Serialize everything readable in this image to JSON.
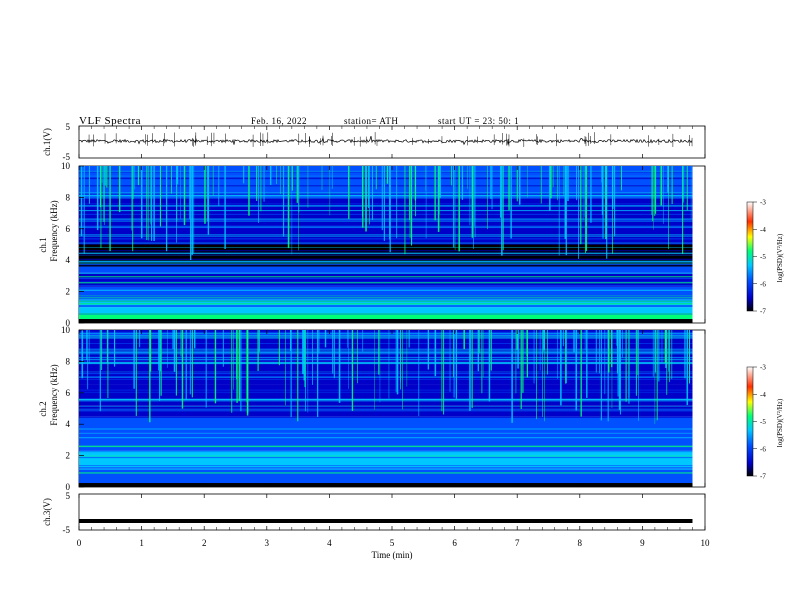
{
  "header": {
    "title": "VLF  Spectra",
    "date": "Feb. 16, 2022",
    "station": "station= ATH",
    "start": "start  UT  =    23: 50: 1"
  },
  "panels": {
    "ch1_label": "ch.1(V)",
    "spec1_label1": "ch.1",
    "spec1_label2": "Frequency  (kHz)",
    "spec2_label1": "ch.2",
    "spec2_label2": "Frequency  (kHz)",
    "ch3_label": "ch.3(V)",
    "xlabel": "Time  (min)",
    "colorbar_label": "log(PSD)(V²/Hz)"
  },
  "colors": {
    "spectrogram_palette": [
      "#000000",
      "#0000c8",
      "#0050ff",
      "#00c8ff",
      "#00ff78",
      "#ffff00",
      "#ff3000",
      "#ffffff"
    ],
    "trace": "#000000"
  },
  "chart_data": [
    {
      "type": "line",
      "name": "ch1-waveform",
      "ylabel": "ch.1(V)",
      "ylim": [
        -5,
        5
      ],
      "yticks": [
        "5",
        "-5"
      ],
      "xlim": [
        0,
        10
      ],
      "data_extent_min": 9.8,
      "level": 0.3
    },
    {
      "type": "heatmap",
      "name": "ch1-spectrogram",
      "ylabel": "Frequency  (kHz)",
      "ylim": [
        0,
        10
      ],
      "yticks": [
        "0",
        "2",
        "4",
        "6",
        "8",
        "10"
      ],
      "xlim": [
        0,
        10
      ],
      "zlim": [
        -7,
        -3
      ],
      "colorbar_ticks": [
        "-3",
        "-4",
        "-5",
        "-6",
        "-7"
      ]
    },
    {
      "type": "heatmap",
      "name": "ch2-spectrogram",
      "ylabel": "Frequency  (kHz)",
      "ylim": [
        0,
        10
      ],
      "yticks": [
        "0",
        "2",
        "4",
        "6",
        "8",
        "10"
      ],
      "xlim": [
        0,
        10
      ],
      "zlim": [
        -7,
        -3
      ],
      "colorbar_ticks": [
        "-3",
        "-4",
        "-5",
        "-6",
        "-7"
      ]
    },
    {
      "type": "line",
      "name": "ch3-waveform",
      "ylabel": "ch.3(V)",
      "ylim": [
        -5,
        5
      ],
      "yticks": [
        "5",
        "-5"
      ],
      "xlim": [
        0,
        10
      ],
      "level": -2.5
    }
  ],
  "xaxis": {
    "xlabel": "Time  (min)",
    "ticks": [
      "0",
      "1",
      "2",
      "3",
      "4",
      "5",
      "6",
      "7",
      "8",
      "9",
      "10"
    ]
  }
}
